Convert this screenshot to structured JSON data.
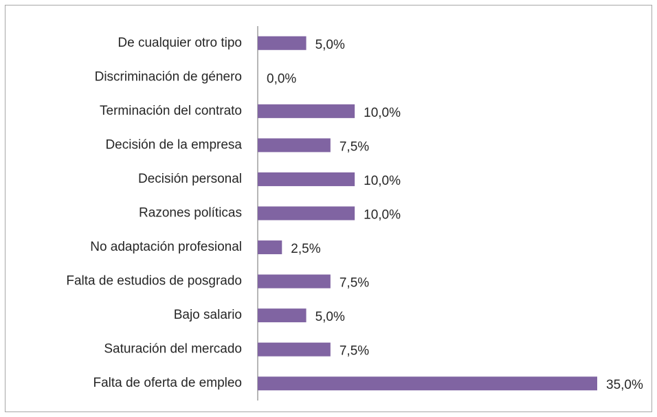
{
  "chart_data": {
    "type": "bar",
    "orientation": "horizontal",
    "categories": [
      "De cualquier otro tipo",
      "Discriminación de género",
      "Terminación del contrato",
      "Decisión de la empresa",
      "Decisión personal",
      "Razones políticas",
      "No adaptación profesional",
      "Falta de estudios de posgrado",
      "Bajo salario",
      "Saturación del mercado",
      "Falta de oferta de empleo"
    ],
    "values": [
      5,
      0,
      10,
      7.5,
      10,
      10,
      2.5,
      7.5,
      5,
      7.5,
      35
    ],
    "value_labels": [
      "5,0%",
      "0,0%",
      "10,0%",
      "7,5%",
      "10,0%",
      "10,0%",
      "2,5%",
      "7,5%",
      "5,0%",
      "7,5%",
      "35,0%"
    ],
    "color": "#8064a2"
  }
}
